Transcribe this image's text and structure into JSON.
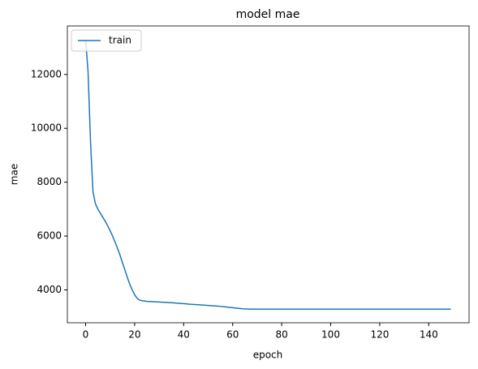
{
  "chart_data": {
    "type": "line",
    "title": "model mae",
    "xlabel": "epoch",
    "ylabel": "mae",
    "x": [
      0,
      1,
      2,
      3,
      4,
      5,
      6,
      7,
      8,
      9,
      10,
      11,
      12,
      13,
      14,
      15,
      16,
      17,
      18,
      19,
      20,
      21,
      22,
      23,
      24,
      25,
      26,
      27,
      28,
      29,
      30,
      31,
      32,
      33,
      34,
      35,
      36,
      37,
      38,
      39,
      40,
      41,
      42,
      43,
      44,
      45,
      46,
      47,
      48,
      49,
      50,
      51,
      52,
      53,
      54,
      55,
      56,
      57,
      58,
      59,
      60,
      61,
      62,
      63,
      64,
      65,
      66,
      67,
      68,
      69,
      70,
      71,
      72,
      73,
      74,
      75,
      76,
      77,
      78,
      79,
      80,
      81,
      82,
      83,
      84,
      85,
      86,
      87,
      88,
      89,
      90,
      91,
      92,
      93,
      94,
      95,
      96,
      97,
      98,
      99,
      100,
      101,
      102,
      103,
      104,
      105,
      106,
      107,
      108,
      109,
      110,
      111,
      112,
      113,
      114,
      115,
      116,
      117,
      118,
      119,
      120,
      121,
      122,
      123,
      124,
      125,
      126,
      127,
      128,
      129,
      130,
      131,
      132,
      133,
      134,
      135,
      136,
      137,
      138,
      139,
      140,
      141,
      142,
      143,
      144,
      145,
      146,
      147,
      148,
      149
    ],
    "series": [
      {
        "name": "train",
        "color": "#1f77b4",
        "values": [
          13300,
          12100,
          9500,
          7650,
          7200,
          7000,
          6850,
          6700,
          6550,
          6380,
          6200,
          6000,
          5780,
          5550,
          5300,
          5020,
          4750,
          4470,
          4220,
          4000,
          3820,
          3690,
          3620,
          3600,
          3590,
          3575,
          3570,
          3565,
          3560,
          3555,
          3550,
          3545,
          3540,
          3535,
          3530,
          3525,
          3518,
          3511,
          3504,
          3497,
          3490,
          3482,
          3474,
          3466,
          3460,
          3454,
          3448,
          3442,
          3436,
          3430,
          3424,
          3417,
          3410,
          3403,
          3396,
          3388,
          3380,
          3370,
          3360,
          3350,
          3340,
          3330,
          3320,
          3310,
          3300,
          3295,
          3290,
          3288,
          3285,
          3285,
          3285,
          3285,
          3285,
          3285,
          3285,
          3285,
          3285,
          3285,
          3285,
          3285,
          3285,
          3285,
          3285,
          3285,
          3285,
          3285,
          3285,
          3285,
          3285,
          3285,
          3285,
          3285,
          3285,
          3285,
          3285,
          3285,
          3285,
          3285,
          3285,
          3285,
          3285,
          3285,
          3285,
          3285,
          3285,
          3285,
          3285,
          3285,
          3285,
          3285,
          3285,
          3285,
          3285,
          3285,
          3285,
          3285,
          3285,
          3285,
          3285,
          3285,
          3285,
          3285,
          3285,
          3285,
          3285,
          3285,
          3285,
          3285,
          3285,
          3285,
          3285,
          3285,
          3285,
          3285,
          3285,
          3285,
          3285,
          3285,
          3285,
          3285,
          3285,
          3285,
          3285,
          3285,
          3285,
          3285,
          3285,
          3285,
          3285,
          3285
        ]
      }
    ],
    "xlim": [
      -7.45,
      156.45
    ],
    "ylim": [
      2780,
      13800
    ],
    "xticks": [
      0,
      20,
      40,
      60,
      80,
      100,
      120,
      140
    ],
    "yticks": [
      4000,
      6000,
      8000,
      10000,
      12000
    ],
    "legend": "upper left"
  }
}
